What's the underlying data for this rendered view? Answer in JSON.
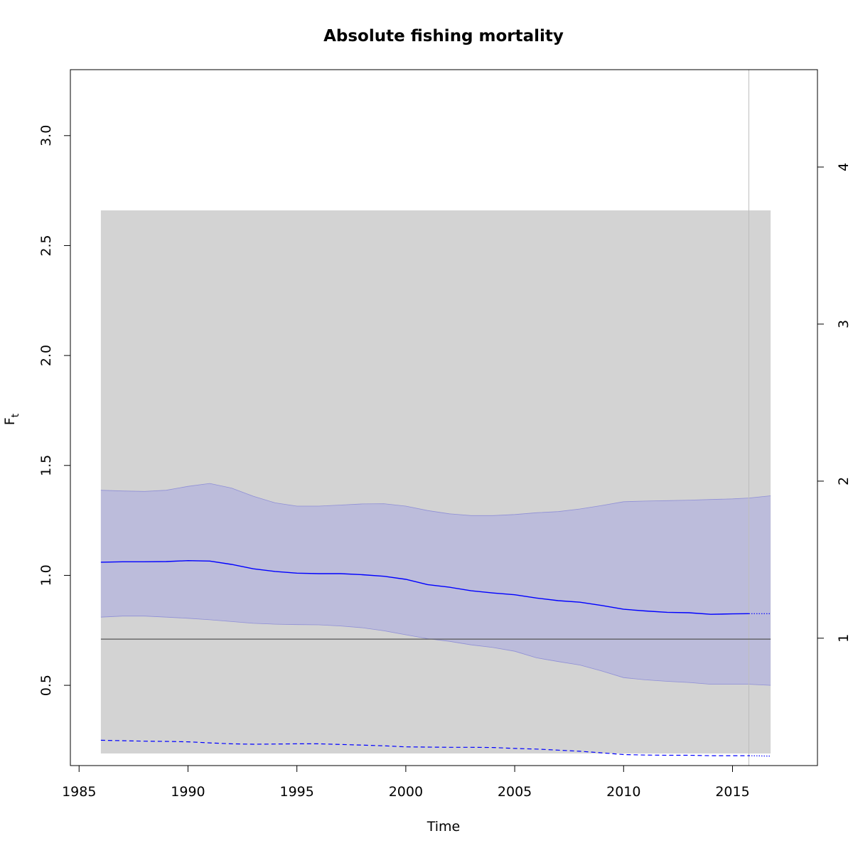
{
  "chart_data": {
    "type": "line",
    "title": "Absolute fishing mortality",
    "xlabel": "Time",
    "ylabel": "F",
    "ylabel_subscript": "t",
    "xlim": [
      1984.6,
      2018.9
    ],
    "ylim": [
      0.135,
      3.3
    ],
    "right_axis": {
      "scale_factor": 1.4,
      "ticks": [
        1,
        2,
        3,
        4
      ],
      "tick_labels": [
        "1",
        "2",
        "3",
        "4"
      ]
    },
    "x_ticks": [
      1985,
      1990,
      1995,
      2000,
      2005,
      2010,
      2015
    ],
    "x_tick_labels": [
      "1985",
      "1990",
      "1995",
      "2000",
      "2005",
      "2010",
      "2015"
    ],
    "y_ticks": [
      0.5,
      1.0,
      1.5,
      2.0,
      2.5,
      3.0
    ],
    "y_tick_labels": [
      "0.5",
      "1.0",
      "1.5",
      "2.0",
      "2.5",
      "3.0"
    ],
    "gray_band": {
      "x": [
        1986,
        2016.75
      ],
      "y": [
        0.19,
        2.66
      ],
      "color": "#d3d3d3"
    },
    "reference_line": {
      "y": 0.71,
      "x": [
        1986,
        2016.75
      ],
      "color": "#555555"
    },
    "vertical_line": {
      "x": 2015.75,
      "color": "#bebebe"
    },
    "colors": {
      "main": "#0000ff",
      "ci_fill": "#bcbcdb",
      "ci_edge": "#8f8fd6"
    },
    "x": [
      1986,
      1987,
      1988,
      1989,
      1990,
      1991,
      1992,
      1993,
      1994,
      1995,
      1996,
      1997,
      1998,
      1999,
      2000,
      2001,
      2002,
      2003,
      2004,
      2005,
      2006,
      2007,
      2008,
      2009,
      2010,
      2011,
      2012,
      2013,
      2014,
      2015,
      2015.75
    ],
    "series": [
      {
        "name": "F_t estimate",
        "values": [
          1.06,
          1.062,
          1.062,
          1.063,
          1.067,
          1.065,
          1.05,
          1.03,
          1.018,
          1.01,
          1.008,
          1.008,
          1.003,
          0.996,
          0.982,
          0.958,
          0.946,
          0.93,
          0.92,
          0.912,
          0.897,
          0.885,
          0.878,
          0.863,
          0.846,
          0.838,
          0.832,
          0.83,
          0.823,
          0.825,
          0.826
        ]
      },
      {
        "name": "upper CI",
        "values": [
          1.387,
          1.384,
          1.382,
          1.387,
          1.405,
          1.418,
          1.397,
          1.36,
          1.33,
          1.315,
          1.315,
          1.32,
          1.325,
          1.326,
          1.315,
          1.295,
          1.28,
          1.272,
          1.272,
          1.277,
          1.285,
          1.29,
          1.302,
          1.318,
          1.335,
          1.338,
          1.34,
          1.342,
          1.345,
          1.348,
          1.352
        ]
      },
      {
        "name": "lower CI",
        "values": [
          0.81,
          0.815,
          0.815,
          0.81,
          0.805,
          0.798,
          0.79,
          0.782,
          0.778,
          0.776,
          0.775,
          0.77,
          0.762,
          0.748,
          0.73,
          0.712,
          0.7,
          0.684,
          0.672,
          0.655,
          0.625,
          0.608,
          0.592,
          0.565,
          0.535,
          0.525,
          0.518,
          0.513,
          0.505,
          0.505,
          0.505
        ]
      },
      {
        "name": "F_msy",
        "style": "dashed",
        "values": [
          0.25,
          0.248,
          0.246,
          0.245,
          0.243,
          0.238,
          0.234,
          0.232,
          0.233,
          0.234,
          0.234,
          0.231,
          0.228,
          0.225,
          0.22,
          0.219,
          0.218,
          0.218,
          0.217,
          0.213,
          0.21,
          0.205,
          0.2,
          0.193,
          0.185,
          0.183,
          0.182,
          0.182,
          0.18,
          0.18,
          0.18
        ]
      }
    ],
    "prediction": {
      "x": [
        2015.75,
        2016.75
      ],
      "estimate": [
        0.826,
        0.826
      ],
      "upper": [
        1.352,
        1.362
      ],
      "lower": [
        0.505,
        0.5
      ],
      "f_msy": [
        0.18,
        0.178
      ]
    }
  }
}
